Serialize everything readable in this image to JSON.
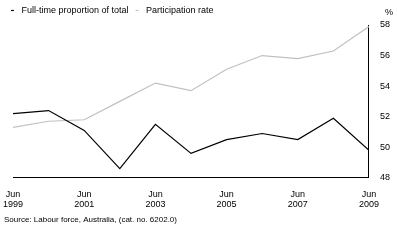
{
  "chart_data": {
    "type": "line",
    "categories": [
      "Jun 1999",
      null,
      "Jun 2001",
      null,
      "Jun 2003",
      null,
      "Jun 2005",
      null,
      "Jun 2007",
      null,
      "Jun 2009"
    ],
    "series": [
      {
        "name": "Full-time proportion of total",
        "color": "#000000",
        "values": [
          52.2,
          52.4,
          51.1,
          48.6,
          51.5,
          49.6,
          50.5,
          50.9,
          50.5,
          51.9,
          49.8
        ]
      },
      {
        "name": "Participation rate",
        "color": "#c0c0c0",
        "values": [
          51.3,
          51.7,
          51.8,
          53.0,
          54.2,
          53.7,
          55.1,
          56.0,
          55.8,
          56.3,
          57.9
        ]
      }
    ],
    "y_label": "%",
    "ylim": [
      48,
      58
    ],
    "yticks": [
      48,
      50,
      52,
      54,
      56,
      58
    ],
    "grid": false,
    "legend": "top-left",
    "source": "Source: Labour force, Australia, (cat. no. 6202.0)"
  }
}
